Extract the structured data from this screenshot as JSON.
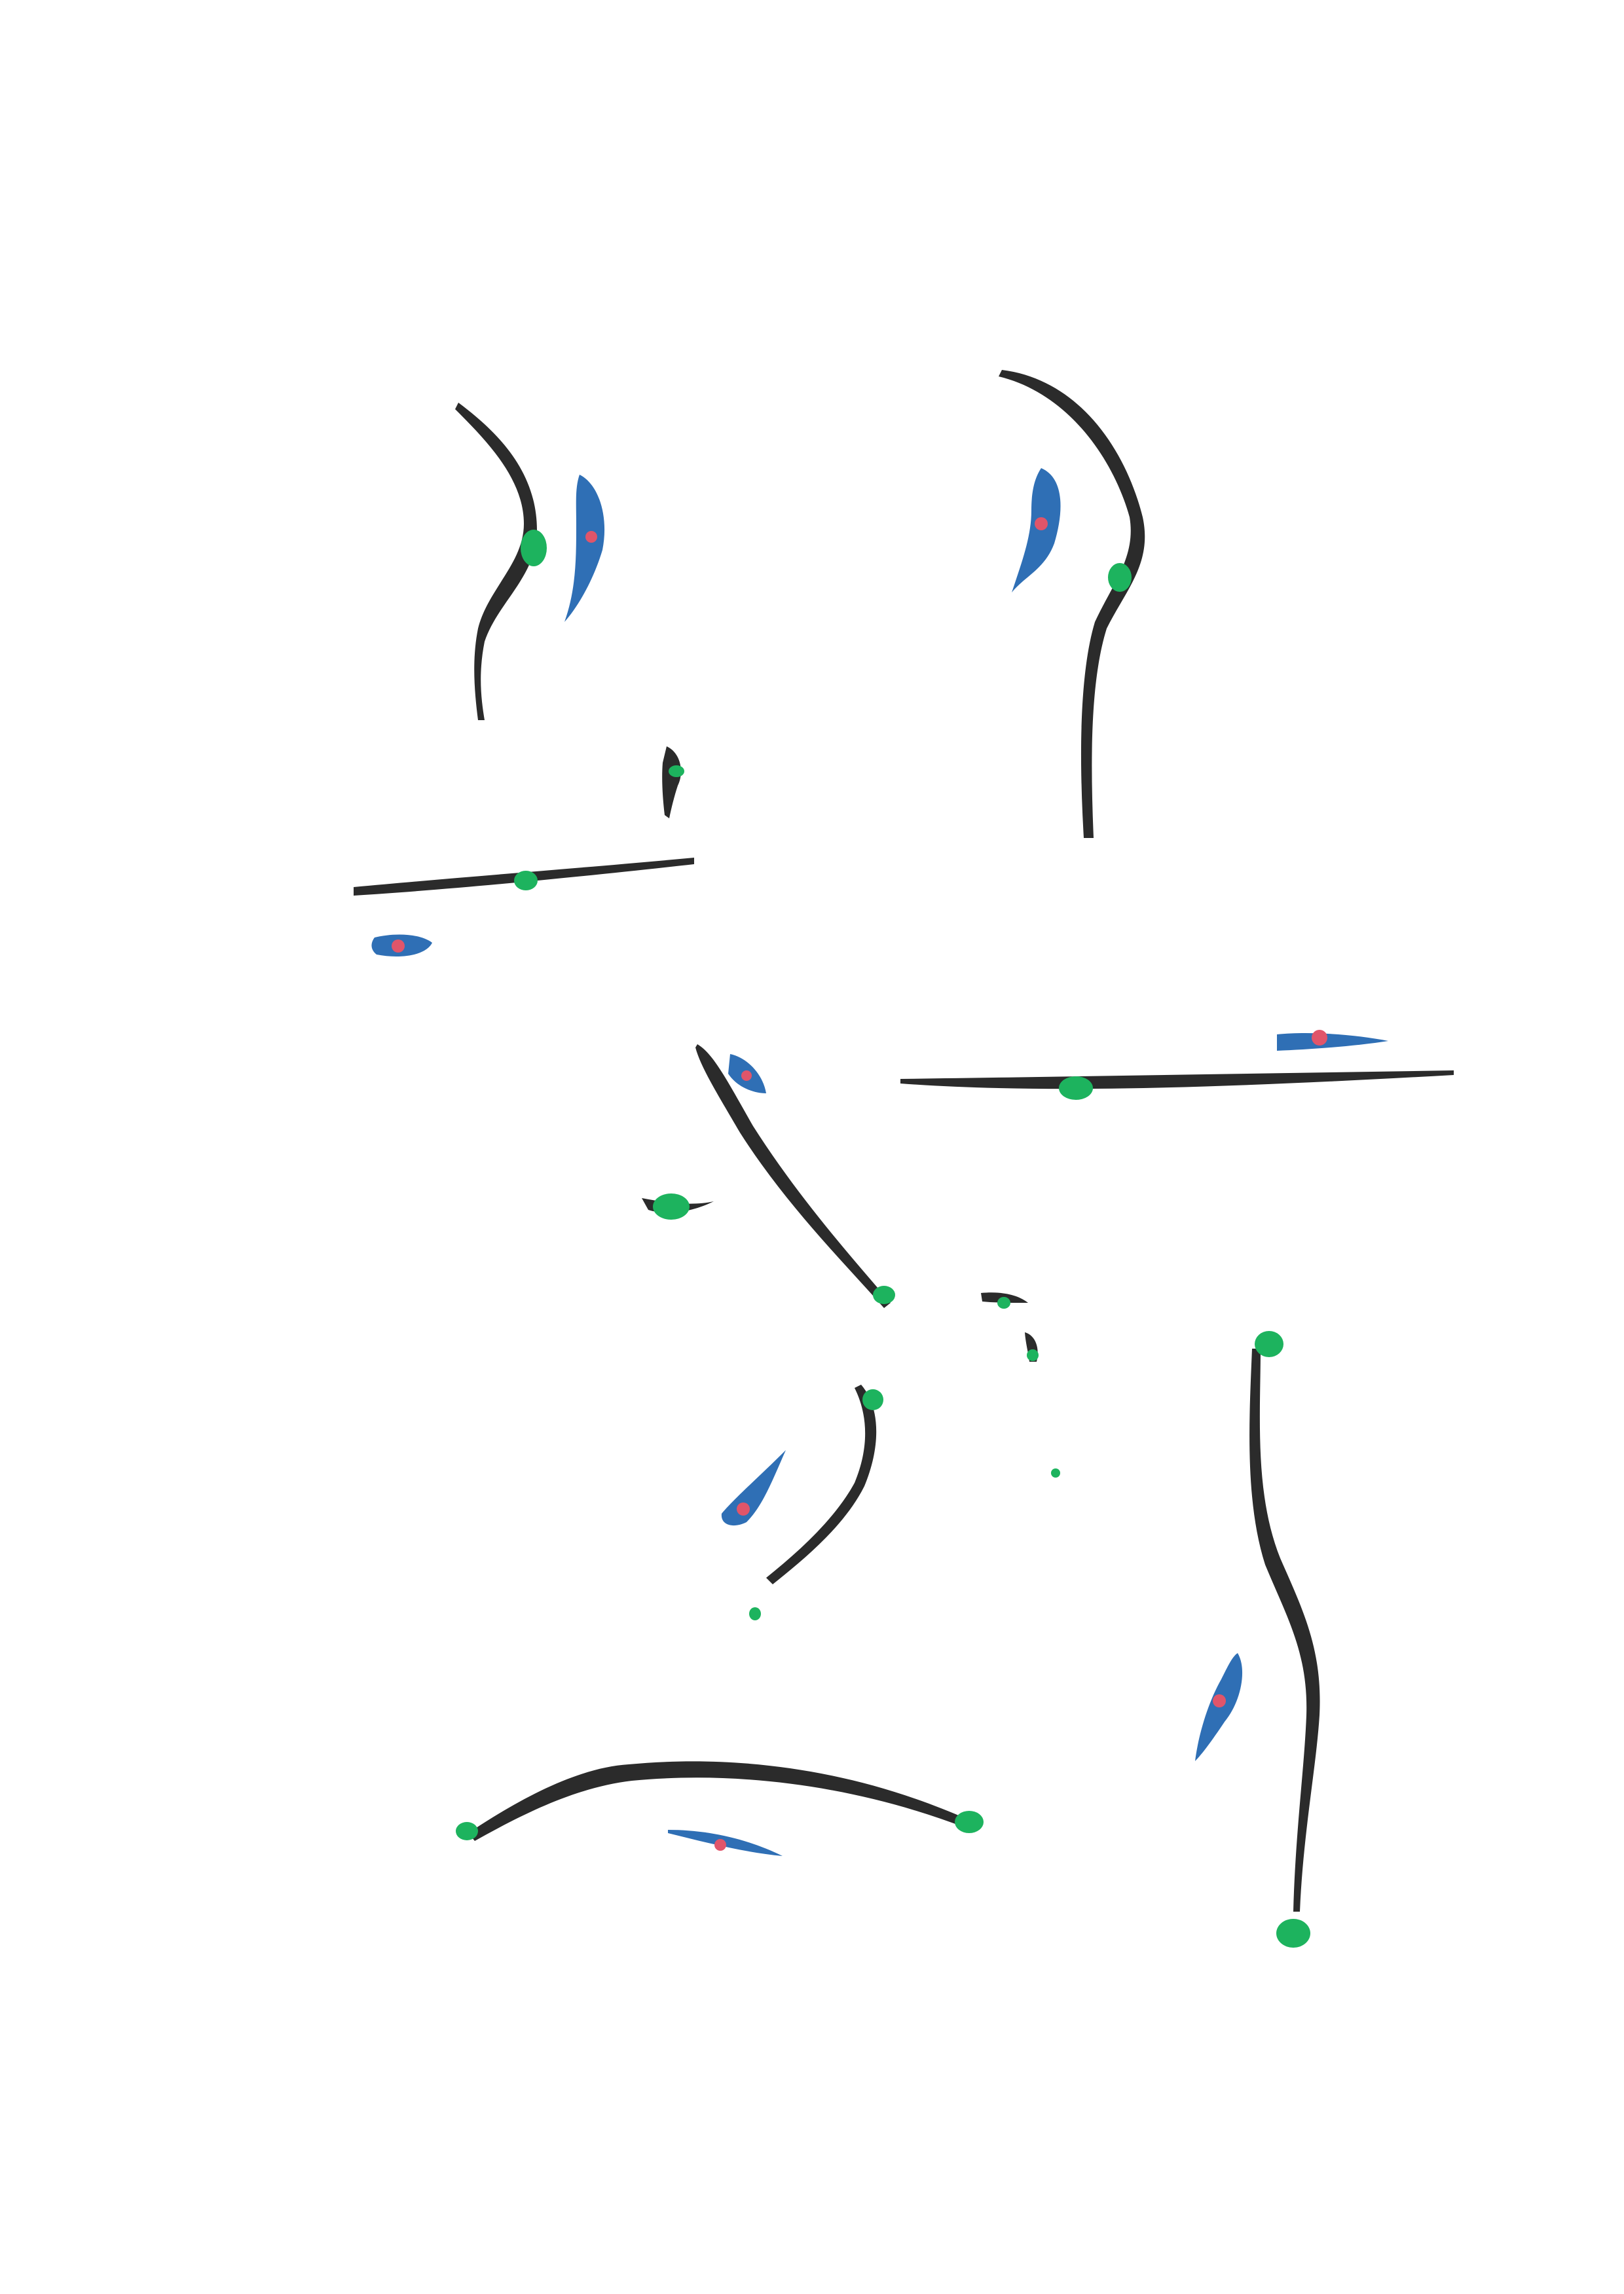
{
  "artwork": {
    "background": "#ffffff",
    "palette": {
      "ink": "#2b2b2b",
      "blue": "#2f6fb5",
      "green": "#1db35e",
      "red": "#e0556a"
    }
  }
}
